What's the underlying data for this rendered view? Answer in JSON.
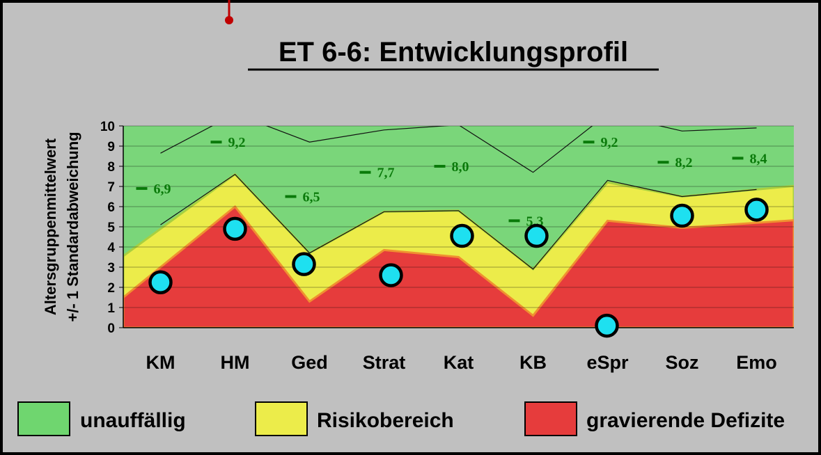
{
  "chart_data": {
    "type": "area",
    "title": "ET 6-6: Entwicklungsprofil",
    "ylabel_line1": "Altersgruppenmittelwert",
    "ylabel_line2": "+/- 1 Standardabweichung",
    "ylim": [
      0,
      10
    ],
    "yticks": [
      "0",
      "1",
      "2",
      "3",
      "4",
      "5",
      "6",
      "7",
      "8",
      "9",
      "10"
    ],
    "categories": [
      "KM",
      "HM",
      "Ged",
      "Strat",
      "Kat",
      "KB",
      "eSpr",
      "Soz",
      "Emo"
    ],
    "bands": {
      "red_top": [
        3.0,
        6.0,
        1.3,
        3.85,
        3.5,
        0.6,
        5.3,
        4.95,
        5.2
      ],
      "yellow_top": [
        4.9,
        7.6,
        3.7,
        5.75,
        5.8,
        2.9,
        7.2,
        6.5,
        6.85
      ]
    },
    "series": [
      {
        "name": "",
        "values": [
          6.9,
          9.2,
          6.5,
          7.7,
          8.0,
          5.3,
          9.2,
          8.2,
          8.4
        ]
      },
      {
        "name": "",
        "values": [
          2.25,
          4.9,
          3.15,
          2.6,
          4.55,
          4.55,
          0.1,
          5.55,
          5.85
        ]
      }
    ],
    "data_labels": [
      "6,9",
      "9,2",
      "6,5",
      "7,7",
      "8,0",
      "5,3",
      "9,2",
      "8,2",
      "8,4"
    ],
    "upper_line": [
      8.65,
      10.6,
      9.2,
      9.8,
      10.05,
      7.7,
      10.6,
      9.75,
      9.9
    ],
    "lower_line": [
      5.1,
      7.6,
      3.7,
      5.75,
      5.8,
      2.9,
      7.3,
      6.5,
      6.85
    ],
    "colors": {
      "green": "#7ad67a",
      "yellow": "#ecec4a",
      "red": "#e63c3c",
      "marker": "#1ee0f0",
      "mean": "#0a7a0a"
    },
    "legend": [
      {
        "label": "unauffällig",
        "color": "#6fd66f"
      },
      {
        "label": "Risikobereich",
        "color": "#ecec4a"
      },
      {
        "label": "gravierende Defizite",
        "color": "#e63c3c"
      }
    ]
  }
}
